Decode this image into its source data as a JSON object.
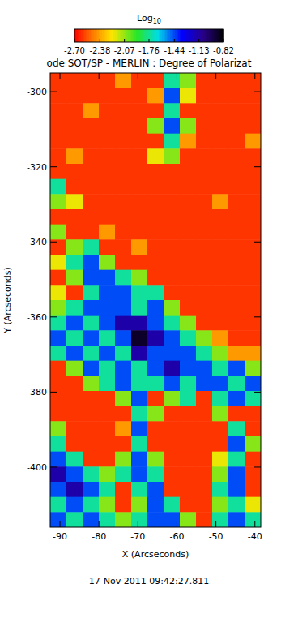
{
  "chart_data": {
    "type": "heatmap",
    "title": "ode SOT/SP - MERLIN : Degree of Polarizat",
    "subtitle": "17-Nov-2011 09:42:27.811",
    "x_label": "X (Arcseconds)",
    "y_label": "Y (Arcseconds)",
    "xlim": [
      -92.5,
      -38.5
    ],
    "ylim": [
      -416,
      -295
    ],
    "xticks": [
      -90,
      -80,
      -70,
      -60,
      -50,
      -40
    ],
    "yticks": [
      -400,
      -380,
      -360,
      -340,
      -320,
      -300
    ],
    "colorbar_title": "Log10",
    "colorbar_lim": [
      -2.7,
      -0.82
    ],
    "colorbar_ticks": [
      {
        "value": -2.7,
        "label": "-2.70"
      },
      {
        "value": -2.38,
        "label": "-2.38"
      },
      {
        "value": -2.07,
        "label": "-2.07"
      },
      {
        "value": -1.76,
        "label": "-1.76"
      },
      {
        "value": -1.44,
        "label": "-1.44"
      },
      {
        "value": -1.13,
        "label": "-1.13"
      },
      {
        "value": -0.82,
        "label": "-0.82"
      }
    ],
    "z": [
      [
        -2.6,
        -2.6,
        -2.6,
        -2.6,
        -2.4,
        -2.6,
        -2.6,
        -1.75,
        -2.05,
        -2.6,
        -2.6,
        -2.6,
        -2.6
      ],
      [
        -2.6,
        -2.6,
        -2.6,
        -2.6,
        -2.6,
        -2.6,
        -2.4,
        -1.45,
        -2.2,
        -2.6,
        -2.6,
        -2.6,
        -2.6
      ],
      [
        -2.6,
        -2.6,
        -2.4,
        -2.6,
        -2.6,
        -2.6,
        -2.6,
        -1.75,
        -2.6,
        -2.6,
        -2.6,
        -2.6,
        -2.6
      ],
      [
        -2.6,
        -2.6,
        -2.6,
        -2.6,
        -2.6,
        -2.6,
        -2.05,
        -1.45,
        -2.05,
        -2.6,
        -2.6,
        -2.6,
        -2.6
      ],
      [
        -2.6,
        -2.6,
        -2.6,
        -2.6,
        -2.6,
        -2.6,
        -2.6,
        -1.75,
        -2.4,
        -2.6,
        -2.6,
        -2.6,
        -2.4
      ],
      [
        -2.6,
        -2.4,
        -2.6,
        -2.6,
        -2.6,
        -2.6,
        -2.2,
        -2.05,
        -2.6,
        -2.6,
        -2.6,
        -2.6,
        -2.6
      ],
      [
        -2.6,
        -2.6,
        -2.6,
        -2.6,
        -2.6,
        -2.6,
        -2.6,
        -2.6,
        -2.6,
        -2.6,
        -2.6,
        -2.6,
        -2.6
      ],
      [
        -1.75,
        -2.6,
        -2.6,
        -2.6,
        -2.6,
        -2.6,
        -2.6,
        -2.6,
        -2.6,
        -2.6,
        -2.6,
        -2.6,
        -2.6
      ],
      [
        -2.05,
        -2.2,
        -2.6,
        -2.6,
        -2.6,
        -2.6,
        -2.6,
        -2.6,
        -2.6,
        -2.6,
        -2.4,
        -2.6,
        -2.6
      ],
      [
        -2.6,
        -2.6,
        -2.6,
        -2.6,
        -2.6,
        -2.6,
        -2.6,
        -2.6,
        -2.6,
        -2.6,
        -2.6,
        -2.6,
        -2.6
      ],
      [
        -2.05,
        -2.6,
        -2.6,
        -2.4,
        -2.6,
        -2.6,
        -2.6,
        -2.6,
        -2.6,
        -2.6,
        -2.6,
        -2.6,
        -2.6
      ],
      [
        -2.6,
        -2.05,
        -1.75,
        -2.6,
        -2.6,
        -2.4,
        -2.6,
        -2.6,
        -2.6,
        -2.6,
        -2.6,
        -2.6,
        -2.6
      ],
      [
        -2.2,
        -1.75,
        -1.45,
        -2.05,
        -2.6,
        -2.6,
        -2.6,
        -2.6,
        -2.6,
        -2.6,
        -2.6,
        -2.6,
        -2.6
      ],
      [
        -2.6,
        -2.05,
        -1.45,
        -1.45,
        -1.75,
        -2.05,
        -2.6,
        -2.6,
        -2.6,
        -2.6,
        -2.6,
        -2.6,
        -2.6
      ],
      [
        -2.2,
        -2.6,
        -1.75,
        -1.45,
        -1.45,
        -1.75,
        -1.75,
        -2.6,
        -2.6,
        -2.6,
        -2.6,
        -2.6,
        -2.6
      ],
      [
        -2.05,
        -1.75,
        -1.45,
        -1.45,
        -1.45,
        -1.75,
        -1.45,
        -2.05,
        -2.6,
        -2.6,
        -2.6,
        -2.6,
        -2.6
      ],
      [
        -1.75,
        -1.45,
        -1.75,
        -1.45,
        -1.15,
        -1.15,
        -1.45,
        -1.75,
        -2.05,
        -2.6,
        -2.6,
        -2.6,
        -2.6
      ],
      [
        -1.45,
        -1.75,
        -1.45,
        -1.75,
        -1.45,
        -0.9,
        -1.15,
        -1.45,
        -1.75,
        -2.05,
        -2.4,
        -2.6,
        -2.6
      ],
      [
        -1.75,
        -1.45,
        -1.75,
        -1.45,
        -1.75,
        -1.15,
        -1.45,
        -1.45,
        -1.45,
        -1.75,
        -2.05,
        -2.4,
        -2.4
      ],
      [
        -2.6,
        -2.05,
        -1.45,
        -1.75,
        -1.45,
        -1.75,
        -1.45,
        -1.15,
        -1.45,
        -1.45,
        -1.75,
        -1.45,
        -2.05
      ],
      [
        -2.6,
        -2.6,
        -2.05,
        -1.75,
        -1.45,
        -1.75,
        -1.75,
        -1.45,
        -1.75,
        -1.45,
        -1.45,
        -1.75,
        -1.45
      ],
      [
        -2.6,
        -2.6,
        -2.6,
        -2.6,
        -2.05,
        -1.45,
        -2.6,
        -2.05,
        -1.75,
        -2.6,
        -1.75,
        -1.45,
        -1.75
      ],
      [
        -2.6,
        -2.6,
        -2.6,
        -2.6,
        -2.6,
        -1.75,
        -2.05,
        -2.6,
        -2.6,
        -2.6,
        -2.05,
        -2.6,
        -2.6
      ],
      [
        -2.05,
        -2.6,
        -2.6,
        -2.6,
        -2.4,
        -1.45,
        -2.6,
        -2.6,
        -2.6,
        -2.6,
        -2.6,
        -1.75,
        -2.6
      ],
      [
        -1.75,
        -2.6,
        -2.6,
        -2.6,
        -2.6,
        -1.75,
        -2.6,
        -2.6,
        -2.6,
        -2.6,
        -2.6,
        -1.45,
        -2.05
      ],
      [
        -1.45,
        -1.75,
        -2.6,
        -2.6,
        -2.05,
        -1.45,
        -2.05,
        -2.6,
        -2.6,
        -2.6,
        -2.2,
        -1.75,
        -2.6
      ],
      [
        -1.15,
        -1.45,
        -1.75,
        -2.05,
        -1.75,
        -1.45,
        -1.75,
        -2.6,
        -2.6,
        -2.6,
        -2.05,
        -1.45,
        -2.6
      ],
      [
        -1.45,
        -1.15,
        -1.45,
        -1.75,
        -2.6,
        -1.75,
        -1.45,
        -2.6,
        -2.6,
        -2.6,
        -1.75,
        -1.45,
        -2.6
      ],
      [
        -1.75,
        -1.45,
        -1.75,
        -2.05,
        -2.6,
        -2.05,
        -1.45,
        -1.75,
        -2.6,
        -2.6,
        -2.05,
        -1.75,
        -2.2
      ],
      [
        -1.45,
        -1.75,
        -1.45,
        -1.75,
        -2.05,
        -1.75,
        -1.45,
        -1.45,
        -2.05,
        -2.6,
        -1.75,
        -1.45,
        -1.75
      ]
    ]
  }
}
